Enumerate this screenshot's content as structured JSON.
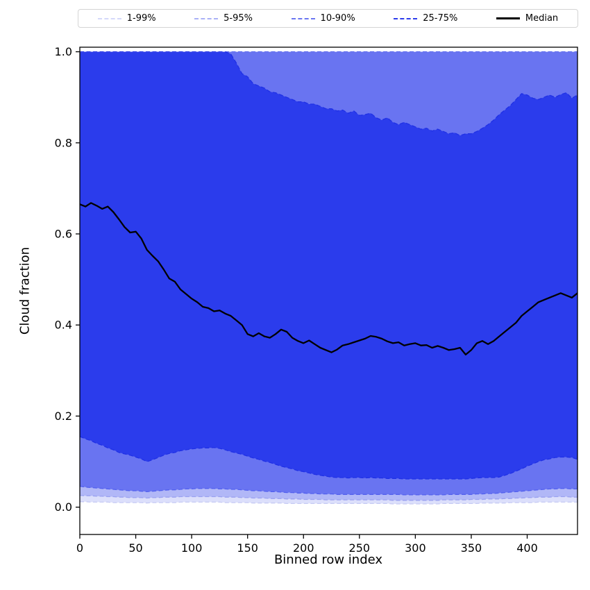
{
  "chart_data": {
    "type": "area",
    "title": "",
    "xlabel": "Binned row index",
    "ylabel": "Cloud fraction",
    "xlim": [
      0,
      445
    ],
    "ylim": [
      -0.06,
      1.01
    ],
    "xticks": [
      0,
      50,
      100,
      150,
      200,
      250,
      300,
      350,
      400
    ],
    "yticks": [
      0.0,
      0.2,
      0.4,
      0.6,
      0.8,
      1.0
    ],
    "grid": false,
    "legend_position": "top",
    "legend": [
      {
        "label": "1-99%",
        "color": "#d4d8fa",
        "dash": true,
        "width": 2
      },
      {
        "label": "5-95%",
        "color": "#aab1f7",
        "dash": true,
        "width": 2
      },
      {
        "label": "10-90%",
        "color": "#6a76f2",
        "dash": true,
        "width": 2
      },
      {
        "label": "25-75%",
        "color": "#2b3cec",
        "dash": true,
        "width": 2
      },
      {
        "label": "Median",
        "color": "#000000",
        "dash": false,
        "width": 3
      }
    ],
    "x": [
      0,
      5,
      10,
      15,
      20,
      25,
      30,
      35,
      40,
      45,
      50,
      55,
      60,
      65,
      70,
      75,
      80,
      85,
      90,
      95,
      100,
      105,
      110,
      115,
      120,
      125,
      130,
      135,
      140,
      145,
      150,
      155,
      160,
      165,
      170,
      175,
      180,
      185,
      190,
      195,
      200,
      205,
      210,
      215,
      220,
      225,
      230,
      235,
      240,
      245,
      250,
      255,
      260,
      265,
      270,
      275,
      280,
      285,
      290,
      295,
      300,
      305,
      310,
      315,
      320,
      325,
      330,
      335,
      340,
      345,
      350,
      355,
      360,
      365,
      370,
      375,
      380,
      385,
      390,
      395,
      400,
      405,
      410,
      415,
      420,
      425,
      430,
      435,
      440,
      445
    ],
    "bands": [
      {
        "name": "1-99%",
        "fill": "#dcdffb",
        "edge": "#c6caf4",
        "upper": 1.0,
        "lower": [
          0.012,
          0.012,
          0.011,
          0.011,
          0.011,
          0.011,
          0.01,
          0.01,
          0.01,
          0.01,
          0.01,
          0.01,
          0.009,
          0.01,
          0.01,
          0.01,
          0.01,
          0.01,
          0.011,
          0.011,
          0.011,
          0.011,
          0.011,
          0.011,
          0.011,
          0.011,
          0.01,
          0.01,
          0.01,
          0.01,
          0.01,
          0.009,
          0.009,
          0.009,
          0.009,
          0.009,
          0.009,
          0.008,
          0.008,
          0.008,
          0.008,
          0.008,
          0.008,
          0.008,
          0.008,
          0.008,
          0.008,
          0.008,
          0.008,
          0.008,
          0.008,
          0.008,
          0.008,
          0.008,
          0.008,
          0.008,
          0.007,
          0.007,
          0.007,
          0.007,
          0.007,
          0.007,
          0.007,
          0.007,
          0.007,
          0.008,
          0.008,
          0.008,
          0.008,
          0.008,
          0.008,
          0.008,
          0.009,
          0.009,
          0.009,
          0.009,
          0.009,
          0.01,
          0.01,
          0.01,
          0.01,
          0.01,
          0.011,
          0.011,
          0.011,
          0.011,
          0.011,
          0.011,
          0.011,
          0.011
        ]
      },
      {
        "name": "5-95%",
        "fill": "#b1b7f7",
        "edge": "#9aa1f0",
        "upper": 1.0,
        "lower": [
          0.026,
          0.025,
          0.025,
          0.024,
          0.024,
          0.023,
          0.023,
          0.022,
          0.022,
          0.021,
          0.021,
          0.021,
          0.02,
          0.021,
          0.021,
          0.022,
          0.022,
          0.022,
          0.023,
          0.023,
          0.023,
          0.023,
          0.023,
          0.023,
          0.023,
          0.023,
          0.022,
          0.022,
          0.022,
          0.021,
          0.021,
          0.02,
          0.02,
          0.02,
          0.019,
          0.019,
          0.019,
          0.018,
          0.018,
          0.018,
          0.017,
          0.017,
          0.017,
          0.017,
          0.016,
          0.016,
          0.016,
          0.016,
          0.016,
          0.016,
          0.016,
          0.016,
          0.016,
          0.016,
          0.016,
          0.016,
          0.015,
          0.015,
          0.015,
          0.015,
          0.015,
          0.015,
          0.015,
          0.015,
          0.015,
          0.016,
          0.016,
          0.016,
          0.016,
          0.016,
          0.017,
          0.017,
          0.017,
          0.018,
          0.018,
          0.018,
          0.019,
          0.019,
          0.02,
          0.02,
          0.021,
          0.021,
          0.022,
          0.022,
          0.022,
          0.023,
          0.023,
          0.023,
          0.022,
          0.022
        ]
      },
      {
        "name": "10-90%",
        "fill": "#6974f1",
        "edge": "#5260ee",
        "upper": 1.0,
        "lower": [
          0.046,
          0.044,
          0.043,
          0.042,
          0.041,
          0.04,
          0.039,
          0.038,
          0.037,
          0.036,
          0.036,
          0.035,
          0.034,
          0.035,
          0.036,
          0.037,
          0.038,
          0.038,
          0.039,
          0.04,
          0.04,
          0.041,
          0.041,
          0.041,
          0.041,
          0.04,
          0.04,
          0.039,
          0.039,
          0.038,
          0.037,
          0.036,
          0.036,
          0.035,
          0.034,
          0.034,
          0.033,
          0.032,
          0.032,
          0.031,
          0.031,
          0.03,
          0.03,
          0.029,
          0.029,
          0.029,
          0.028,
          0.028,
          0.028,
          0.028,
          0.028,
          0.028,
          0.028,
          0.028,
          0.028,
          0.028,
          0.028,
          0.028,
          0.027,
          0.027,
          0.027,
          0.027,
          0.027,
          0.027,
          0.027,
          0.027,
          0.028,
          0.028,
          0.028,
          0.028,
          0.028,
          0.029,
          0.029,
          0.03,
          0.03,
          0.031,
          0.032,
          0.033,
          0.034,
          0.035,
          0.036,
          0.037,
          0.038,
          0.039,
          0.04,
          0.04,
          0.041,
          0.041,
          0.04,
          0.04
        ]
      },
      {
        "name": "25-75%",
        "fill": "#2b3cec",
        "edge": "#1f30e5",
        "upper": [
          1,
          1,
          1,
          1,
          1,
          1,
          1,
          1,
          1,
          1,
          1,
          1,
          1,
          1,
          1,
          1,
          1,
          1,
          1,
          1,
          1,
          1,
          1,
          1,
          1,
          1,
          1,
          0.995,
          0.975,
          0.952,
          0.945,
          0.93,
          0.925,
          0.92,
          0.912,
          0.91,
          0.905,
          0.9,
          0.895,
          0.89,
          0.89,
          0.885,
          0.885,
          0.88,
          0.875,
          0.875,
          0.87,
          0.872,
          0.865,
          0.87,
          0.86,
          0.862,
          0.865,
          0.855,
          0.85,
          0.855,
          0.845,
          0.84,
          0.845,
          0.84,
          0.835,
          0.83,
          0.832,
          0.826,
          0.83,
          0.825,
          0.82,
          0.822,
          0.816,
          0.82,
          0.82,
          0.825,
          0.832,
          0.84,
          0.85,
          0.862,
          0.872,
          0.882,
          0.895,
          0.908,
          0.905,
          0.898,
          0.895,
          0.9,
          0.905,
          0.9,
          0.906,
          0.91,
          0.898,
          0.905
        ],
        "lower": [
          0.155,
          0.15,
          0.146,
          0.14,
          0.136,
          0.13,
          0.126,
          0.12,
          0.117,
          0.114,
          0.11,
          0.106,
          0.1,
          0.104,
          0.109,
          0.114,
          0.118,
          0.12,
          0.124,
          0.126,
          0.128,
          0.129,
          0.13,
          0.13,
          0.131,
          0.129,
          0.126,
          0.122,
          0.119,
          0.116,
          0.112,
          0.108,
          0.105,
          0.101,
          0.098,
          0.094,
          0.09,
          0.087,
          0.084,
          0.08,
          0.078,
          0.075,
          0.072,
          0.07,
          0.068,
          0.066,
          0.065,
          0.065,
          0.064,
          0.065,
          0.065,
          0.064,
          0.065,
          0.064,
          0.064,
          0.063,
          0.063,
          0.063,
          0.062,
          0.062,
          0.062,
          0.062,
          0.062,
          0.062,
          0.062,
          0.062,
          0.062,
          0.062,
          0.062,
          0.062,
          0.063,
          0.064,
          0.065,
          0.065,
          0.065,
          0.066,
          0.07,
          0.074,
          0.079,
          0.084,
          0.09,
          0.095,
          0.1,
          0.104,
          0.106,
          0.109,
          0.11,
          0.11,
          0.109,
          0.105
        ]
      }
    ],
    "median": {
      "label": "Median",
      "color": "#000000",
      "values": [
        0.665,
        0.66,
        0.668,
        0.662,
        0.655,
        0.66,
        0.648,
        0.632,
        0.615,
        0.603,
        0.605,
        0.59,
        0.565,
        0.552,
        0.54,
        0.522,
        0.502,
        0.495,
        0.478,
        0.468,
        0.458,
        0.45,
        0.44,
        0.437,
        0.43,
        0.432,
        0.425,
        0.42,
        0.41,
        0.4,
        0.38,
        0.375,
        0.382,
        0.375,
        0.372,
        0.38,
        0.39,
        0.385,
        0.372,
        0.365,
        0.36,
        0.366,
        0.358,
        0.35,
        0.345,
        0.34,
        0.346,
        0.355,
        0.358,
        0.362,
        0.366,
        0.37,
        0.376,
        0.374,
        0.37,
        0.364,
        0.36,
        0.362,
        0.355,
        0.358,
        0.36,
        0.355,
        0.356,
        0.35,
        0.354,
        0.35,
        0.345,
        0.347,
        0.35,
        0.335,
        0.345,
        0.36,
        0.365,
        0.358,
        0.365,
        0.375,
        0.385,
        0.395,
        0.405,
        0.42,
        0.43,
        0.44,
        0.45,
        0.455,
        0.46,
        0.465,
        0.47,
        0.465,
        0.46,
        0.47
      ]
    }
  }
}
